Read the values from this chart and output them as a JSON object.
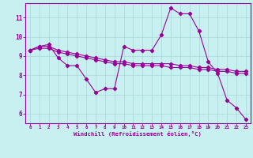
{
  "xlabel": "Windchill (Refroidissement éolien,°C)",
  "bg_color": "#c8f0f0",
  "line_color": "#990099",
  "grid_color": "#a8d8d8",
  "xlim": [
    -0.5,
    23.5
  ],
  "ylim": [
    5.5,
    11.75
  ],
  "xticks": [
    0,
    1,
    2,
    3,
    4,
    5,
    6,
    7,
    8,
    9,
    10,
    11,
    12,
    13,
    14,
    15,
    16,
    17,
    18,
    19,
    20,
    21,
    22,
    23
  ],
  "yticks": [
    6,
    7,
    8,
    9,
    10,
    11
  ],
  "line1_x": [
    0,
    1,
    2,
    3,
    4,
    5,
    6,
    7,
    8,
    9,
    10,
    11,
    12,
    13,
    14,
    15,
    16,
    17,
    18,
    19,
    20,
    21,
    22,
    23
  ],
  "line1_y": [
    9.3,
    9.5,
    9.6,
    8.9,
    8.5,
    8.5,
    7.8,
    7.1,
    7.3,
    7.3,
    9.5,
    9.3,
    9.3,
    9.3,
    10.1,
    11.5,
    11.2,
    11.2,
    10.3,
    8.7,
    8.1,
    6.7,
    6.3,
    5.7
  ],
  "line2_x": [
    0,
    1,
    2,
    3,
    4,
    5,
    6,
    7,
    8,
    9,
    10,
    11,
    12,
    13,
    14,
    15,
    16,
    17,
    18,
    19,
    20,
    21,
    22,
    23
  ],
  "line2_y": [
    9.3,
    9.5,
    9.5,
    9.3,
    9.2,
    9.1,
    9.0,
    8.9,
    8.8,
    8.7,
    8.7,
    8.6,
    8.6,
    8.6,
    8.6,
    8.6,
    8.5,
    8.5,
    8.4,
    8.4,
    8.3,
    8.3,
    8.2,
    8.2
  ],
  "line3_x": [
    0,
    1,
    2,
    3,
    4,
    5,
    6,
    7,
    8,
    9,
    10,
    11,
    12,
    13,
    14,
    15,
    16,
    17,
    18,
    19,
    20,
    21,
    22,
    23
  ],
  "line3_y": [
    9.3,
    9.4,
    9.4,
    9.2,
    9.1,
    9.0,
    8.9,
    8.8,
    8.7,
    8.6,
    8.6,
    8.5,
    8.5,
    8.5,
    8.5,
    8.4,
    8.4,
    8.4,
    8.3,
    8.3,
    8.2,
    8.2,
    8.1,
    8.1
  ]
}
